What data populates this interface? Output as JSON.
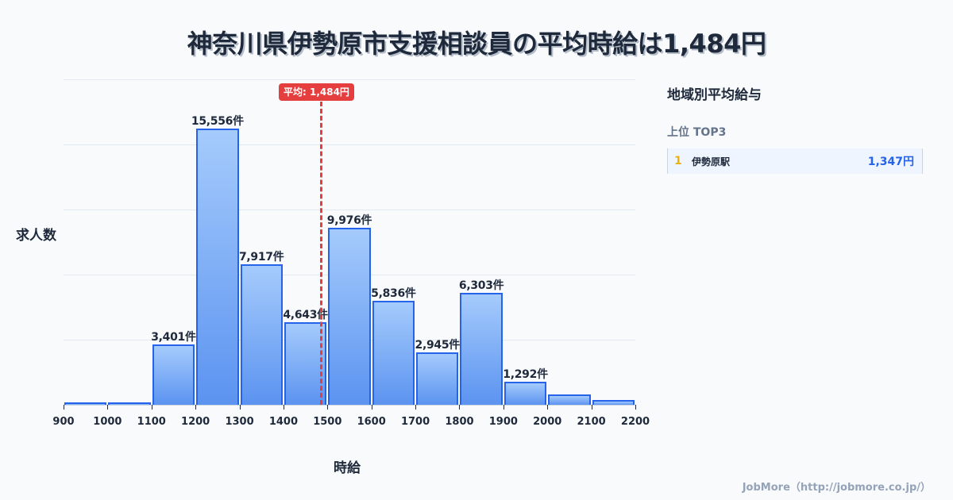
{
  "title": "神奈川県伊勢原市支援相談員の平均時給は1,484円",
  "chart_data": {
    "type": "bar",
    "title": "神奈川県伊勢原市支援相談員の平均時給は1,484円",
    "xlabel": "時給",
    "ylabel": "求人数",
    "x_ticks": [
      "900",
      "1000",
      "1100",
      "1200",
      "1300",
      "1400",
      "1500",
      "1600",
      "1700",
      "1800",
      "1900",
      "2000",
      "2100",
      "2200"
    ],
    "categories": [
      "900-1000",
      "1000-1100",
      "1100-1200",
      "1200-1300",
      "1300-1400",
      "1400-1500",
      "1500-1600",
      "1600-1700",
      "1700-1800",
      "1800-1900",
      "1900-2000",
      "2000-2100",
      "2100-2200"
    ],
    "values": [
      60,
      150,
      3401,
      15556,
      7917,
      4643,
      9976,
      5836,
      2945,
      6303,
      1292,
      560,
      280
    ],
    "labels": [
      "",
      "",
      "3,401件",
      "15,556件",
      "7,917件",
      "4,643件",
      "9,976件",
      "5,836件",
      "2,945件",
      "6,303件",
      "1,292件",
      "",
      ""
    ],
    "ylim": [
      0,
      18330
    ],
    "grid": true,
    "annotation": {
      "label": "平均: 1,484円",
      "x": 1484
    }
  },
  "axis": {
    "ylabel": "求人数",
    "xlabel": "時給"
  },
  "average_badge": "平均: 1,484円",
  "panel": {
    "title": "地域別平均給与",
    "subtitle": "上位 TOP3",
    "ranks": [
      {
        "rank": "1",
        "name": "伊勢原駅",
        "value": "1,347円"
      }
    ]
  },
  "footer": "JobMore（http://jobmore.co.jp/）",
  "colors": {
    "bar_border": "#2563eb",
    "bar_fill_top": "#a5cbfc",
    "bar_fill_bottom": "#5b93f0",
    "avg_line": "#e53e3e",
    "rank_number": "#eab308",
    "rank_value": "#2563eb"
  }
}
